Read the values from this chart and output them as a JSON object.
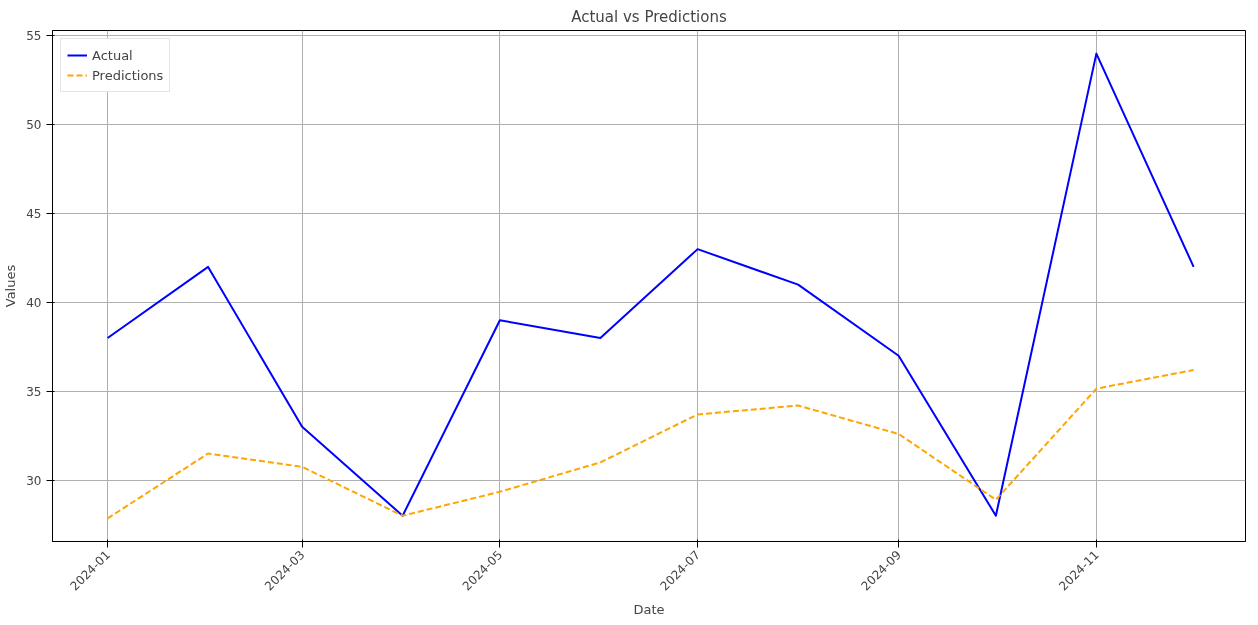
{
  "chart_data": {
    "type": "line",
    "title": "Actual vs Predictions",
    "xlabel": "Date",
    "ylabel": "Values",
    "x": [
      "2024-01",
      "2024-02",
      "2024-03",
      "2024-04",
      "2024-05",
      "2024-06",
      "2024-07",
      "2024-08",
      "2024-09",
      "2024-10",
      "2024-11",
      "2024-12"
    ],
    "series": [
      {
        "name": "Actual",
        "color": "#0000ff",
        "line_style": "solid",
        "values": [
          38,
          42,
          33,
          28,
          39,
          38,
          43,
          41,
          37,
          28,
          54,
          42
        ]
      },
      {
        "name": "Predictions",
        "color": "#ffa500",
        "line_style": "dashed",
        "values": [
          27.85,
          31.5,
          30.75,
          28.0,
          29.35,
          31.0,
          33.7,
          34.2,
          32.6,
          28.9,
          35.15,
          36.2
        ]
      }
    ],
    "xlim": [
      "2023-12-15",
      "2024-12-17"
    ],
    "xticks": [
      {
        "value": "2024-01",
        "label": "2024-01"
      },
      {
        "value": "2024-03",
        "label": "2024-03"
      },
      {
        "value": "2024-05",
        "label": "2024-05"
      },
      {
        "value": "2024-07",
        "label": "2024-07"
      },
      {
        "value": "2024-09",
        "label": "2024-09"
      },
      {
        "value": "2024-11",
        "label": "2024-11"
      }
    ],
    "ylim": [
      26.55,
      55.3
    ],
    "yticks": [
      30,
      35,
      40,
      45,
      50,
      55
    ],
    "grid": true,
    "legend": "top left",
    "marker": "none"
  }
}
